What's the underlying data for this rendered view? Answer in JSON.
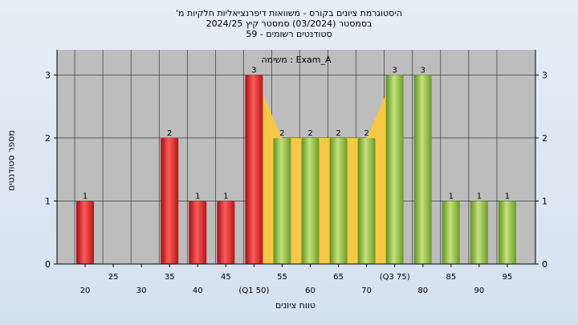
{
  "title_lines": [
    "'היסטוגרמת ציונים בקורס - משוואות דיפרנציאליות חלקיות מ",
    "בסמסטר  (03/2024)  סמסטר קיץ  2024/25",
    "סטודנטים רשומים - 59"
  ],
  "chart_data": {
    "type": "bar",
    "title": "",
    "subtitle": "משימה : Exam_A",
    "xlabel": "טווח ציונים",
    "ylabel": "מספר סטודנטים",
    "ylim": [
      0,
      3.4
    ],
    "yticks": [
      0,
      1,
      2,
      3
    ],
    "x_ticks": [
      {
        "x": 20,
        "label": "20"
      },
      {
        "x": 25,
        "label": "25"
      },
      {
        "x": 30,
        "label": "30"
      },
      {
        "x": 35,
        "label": "35"
      },
      {
        "x": 40,
        "label": "40"
      },
      {
        "x": 45,
        "label": "45"
      },
      {
        "x": 50,
        "label": "(Q1 50)"
      },
      {
        "x": 55,
        "label": "55"
      },
      {
        "x": 60,
        "label": "60"
      },
      {
        "x": 65,
        "label": "65"
      },
      {
        "x": 70,
        "label": "70"
      },
      {
        "x": 75,
        "label": "(Q3 75)"
      },
      {
        "x": 80,
        "label": "80"
      },
      {
        "x": 85,
        "label": "85"
      },
      {
        "x": 90,
        "label": "90"
      },
      {
        "x": 95,
        "label": "95"
      }
    ],
    "bars": [
      {
        "x": 20,
        "value": 1,
        "label": "1",
        "color": "red"
      },
      {
        "x": 35,
        "value": 2,
        "label": "2",
        "color": "red"
      },
      {
        "x": 40,
        "value": 1,
        "label": "1",
        "color": "red"
      },
      {
        "x": 45,
        "value": 1,
        "label": "1",
        "color": "red"
      },
      {
        "x": 50,
        "value": 3,
        "label": "3",
        "color": "red"
      },
      {
        "x": 55,
        "value": 2,
        "label": "2",
        "color": "green"
      },
      {
        "x": 60,
        "value": 2,
        "label": "2",
        "color": "green"
      },
      {
        "x": 65,
        "value": 2,
        "label": "2",
        "color": "green"
      },
      {
        "x": 70,
        "value": 2,
        "label": "2",
        "color": "green"
      },
      {
        "x": 75,
        "value": 3,
        "label": "3",
        "color": "green"
      },
      {
        "x": 80,
        "value": 3,
        "label": "3",
        "color": "green"
      },
      {
        "x": 85,
        "value": 1,
        "label": "1",
        "color": "green"
      },
      {
        "x": 90,
        "value": 1,
        "label": "1",
        "color": "green"
      },
      {
        "x": 95,
        "value": 1,
        "label": "1",
        "color": "green"
      }
    ],
    "iqr_band": {
      "from": 50,
      "to": 75,
      "color": "#f7c847"
    },
    "grid": true,
    "colors": {
      "plot_bg": "#bdbdbd",
      "grid": "#222222",
      "red": "#e0262a",
      "green": "#8dc13e"
    }
  }
}
